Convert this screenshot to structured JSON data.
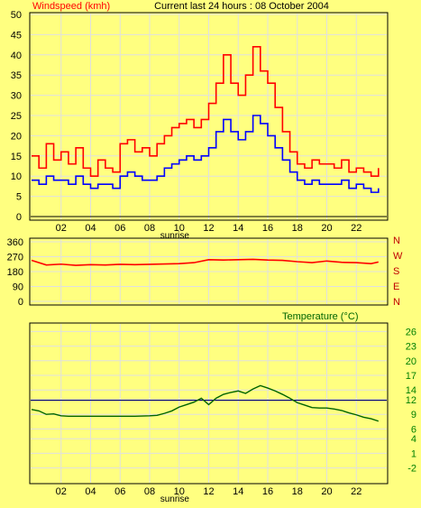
{
  "header": {
    "title": "Current last 24 hours : 08 October 2004"
  },
  "colors": {
    "background": "#ffff80",
    "gust": "#ff0000",
    "average": "#0000ff",
    "direction": "#ff0000",
    "direction_labels": "#c00000",
    "temperature": "#006400",
    "temperature_labels": "#008000",
    "reference": "#000080",
    "grid": "#e0e0e0"
  },
  "chart_data": [
    {
      "type": "line",
      "title": "Windspeed (kmh)",
      "x_ticks": [
        "02",
        "04",
        "06",
        "08",
        "10",
        "12",
        "14",
        "16",
        "18",
        "20",
        "22"
      ],
      "x_tick_positions": [
        2,
        4,
        6,
        8,
        10,
        12,
        14,
        16,
        18,
        20,
        22
      ],
      "xlim": [
        0,
        24
      ],
      "ylim": [
        0,
        50
      ],
      "y_ticks": [
        0,
        5,
        10,
        15,
        20,
        25,
        30,
        35,
        40,
        45,
        50
      ],
      "x_annotation": {
        "text": "sunrise",
        "x": 9.7
      },
      "grid": true,
      "series": [
        {
          "name": "gust",
          "x": [
            0,
            0.5,
            1,
            1.5,
            2,
            2.5,
            3,
            3.5,
            4,
            4.5,
            5,
            5.5,
            6,
            6.5,
            7,
            7.5,
            8,
            8.5,
            9,
            9.5,
            10,
            10.5,
            11,
            11.5,
            12,
            12.5,
            13,
            13.5,
            14,
            14.5,
            15,
            15.5,
            16,
            16.5,
            17,
            17.5,
            18,
            18.5,
            19,
            19.5,
            20,
            20.5,
            21,
            21.5,
            22,
            22.5,
            23,
            23.5
          ],
          "values": [
            15,
            12,
            18,
            14,
            16,
            13,
            17,
            12,
            10,
            14,
            12,
            11,
            18,
            19,
            16,
            17,
            15,
            18,
            20,
            22,
            23,
            24,
            22,
            24,
            28,
            33,
            40,
            33,
            30,
            35,
            42,
            36,
            33,
            27,
            21,
            16,
            13,
            12,
            14,
            13,
            13,
            12,
            14,
            11,
            12,
            11,
            10,
            12
          ]
        },
        {
          "name": "average",
          "x": [
            0,
            0.5,
            1,
            1.5,
            2,
            2.5,
            3,
            3.5,
            4,
            4.5,
            5,
            5.5,
            6,
            6.5,
            7,
            7.5,
            8,
            8.5,
            9,
            9.5,
            10,
            10.5,
            11,
            11.5,
            12,
            12.5,
            13,
            13.5,
            14,
            14.5,
            15,
            15.5,
            16,
            16.5,
            17,
            17.5,
            18,
            18.5,
            19,
            19.5,
            20,
            20.5,
            21,
            21.5,
            22,
            22.5,
            23,
            23.5
          ],
          "values": [
            9,
            8,
            10,
            9,
            9,
            8,
            10,
            8,
            7,
            8,
            8,
            7,
            10,
            11,
            10,
            9,
            9,
            10,
            12,
            13,
            14,
            15,
            14,
            15,
            17,
            21,
            24,
            21,
            19,
            21,
            25,
            23,
            20,
            17,
            14,
            11,
            9,
            8,
            9,
            8,
            8,
            8,
            9,
            7,
            8,
            7,
            6,
            7
          ]
        }
      ]
    },
    {
      "type": "line",
      "title": "",
      "xlim": [
        0,
        24
      ],
      "ylim": [
        0,
        360
      ],
      "y_ticks": [
        0,
        90,
        180,
        270,
        360
      ],
      "compass_labels": [
        "N",
        "W",
        "S",
        "E",
        "N"
      ],
      "grid": true,
      "series": [
        {
          "name": "direction",
          "x": [
            0,
            1,
            2,
            3,
            4,
            5,
            6,
            7,
            8,
            9,
            10,
            11,
            12,
            13,
            14,
            15,
            16,
            17,
            18,
            19,
            20,
            21,
            22,
            23,
            23.5
          ],
          "values": [
            248,
            220,
            225,
            218,
            222,
            220,
            224,
            222,
            224,
            226,
            228,
            234,
            252,
            250,
            252,
            254,
            250,
            248,
            240,
            234,
            244,
            236,
            234,
            228,
            238
          ]
        }
      ]
    },
    {
      "type": "line",
      "title": "Temperature (°C)",
      "x_ticks": [
        "02",
        "04",
        "06",
        "08",
        "10",
        "12",
        "14",
        "16",
        "18",
        "20",
        "22"
      ],
      "x_tick_positions": [
        2,
        4,
        6,
        8,
        10,
        12,
        14,
        16,
        18,
        20,
        22
      ],
      "xlim": [
        0,
        24
      ],
      "ylim": [
        -3,
        27
      ],
      "y_ticks": [
        26,
        23,
        20,
        17,
        14,
        12,
        9,
        6,
        4,
        1,
        -2
      ],
      "x_annotation": {
        "text": "sunrise",
        "x": 9.7
      },
      "grid": true,
      "reference_line": 11.9,
      "series": [
        {
          "name": "temperature",
          "x": [
            0,
            0.5,
            1,
            1.5,
            2,
            2.5,
            3,
            4,
            5,
            6,
            7,
            8,
            8.5,
            9,
            9.5,
            10,
            10.5,
            11,
            11.5,
            12,
            12.5,
            13,
            13.5,
            14,
            14.5,
            15,
            15.5,
            16,
            16.5,
            17,
            17.5,
            18,
            18.5,
            19,
            19.5,
            20,
            20.5,
            21,
            21.5,
            22,
            22.5,
            23,
            23.5
          ],
          "values": [
            10,
            9.7,
            9.0,
            9.1,
            8.7,
            8.6,
            8.6,
            8.6,
            8.6,
            8.6,
            8.6,
            8.7,
            8.8,
            9.2,
            9.7,
            10.5,
            11.0,
            11.5,
            12.3,
            11.0,
            12.3,
            13.1,
            13.5,
            13.8,
            13.3,
            14.2,
            14.9,
            14.4,
            13.8,
            13.1,
            12.3,
            11.4,
            10.9,
            10.4,
            10.3,
            10.3,
            10.1,
            9.8,
            9.3,
            8.9,
            8.4,
            8.1,
            7.6
          ]
        }
      ]
    }
  ]
}
